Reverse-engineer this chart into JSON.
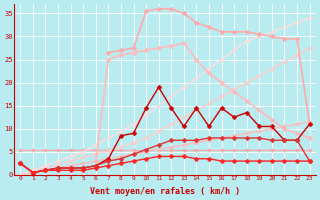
{
  "xlabel": "Vent moyen/en rafales ( km/h )",
  "xlim": [
    -0.5,
    23.5
  ],
  "ylim": [
    0,
    37
  ],
  "yticks": [
    0,
    5,
    10,
    15,
    20,
    25,
    30,
    35
  ],
  "xticks": [
    0,
    1,
    2,
    3,
    4,
    5,
    6,
    7,
    8,
    9,
    10,
    11,
    12,
    13,
    14,
    15,
    16,
    17,
    18,
    19,
    20,
    21,
    22,
    23
  ],
  "bg_color": "#b8ecf0",
  "grid_color": "#ffffff",
  "series": [
    {
      "x": [
        0,
        1,
        2,
        3,
        4,
        5,
        6,
        7,
        8,
        9,
        10,
        11,
        12,
        13,
        14,
        15,
        16,
        17,
        18,
        19,
        20,
        21,
        22,
        23
      ],
      "y": [
        5.5,
        5.5,
        5.5,
        5.5,
        5.5,
        5.5,
        5.5,
        5.5,
        5.5,
        5.5,
        5.5,
        5.5,
        5.5,
        5.5,
        5.5,
        5.5,
        5.5,
        5.5,
        5.5,
        5.5,
        5.5,
        5.5,
        5.5,
        5.5
      ],
      "color": "#ffaaaa",
      "lw": 1.0,
      "marker": "D",
      "ms": 2.0
    },
    {
      "x": [
        0,
        1,
        2,
        3,
        4,
        5,
        6,
        7,
        8,
        9,
        10,
        11,
        12,
        13,
        14,
        15,
        16,
        17,
        18,
        19,
        20,
        21,
        22,
        23
      ],
      "y": [
        0,
        0.5,
        1.0,
        1.5,
        2.0,
        2.5,
        3.0,
        3.5,
        4.0,
        4.5,
        5.0,
        5.5,
        6.0,
        6.5,
        7.0,
        7.5,
        8.0,
        8.5,
        9.0,
        9.5,
        10.0,
        10.5,
        11.0,
        11.5
      ],
      "color": "#ffbbbb",
      "lw": 1.0,
      "marker": "D",
      "ms": 2.0
    },
    {
      "x": [
        0,
        1,
        2,
        3,
        4,
        5,
        6,
        7,
        8,
        9,
        10,
        11,
        12,
        13,
        14,
        15,
        16,
        17,
        18,
        19,
        20,
        21,
        22,
        23
      ],
      "y": [
        0,
        0.8,
        1.5,
        2.2,
        3.0,
        3.8,
        4.5,
        5.2,
        6.0,
        7.0,
        8.0,
        9.5,
        11.0,
        12.5,
        14.0,
        15.5,
        17.0,
        18.5,
        20.0,
        21.5,
        23.0,
        24.5,
        26.0,
        27.5
      ],
      "color": "#ffcccc",
      "lw": 1.0,
      "marker": "D",
      "ms": 2.0
    },
    {
      "x": [
        0,
        1,
        2,
        3,
        4,
        5,
        6,
        7,
        8,
        9,
        10,
        11,
        12,
        13,
        14,
        15,
        16,
        17,
        18,
        19,
        20,
        21,
        22,
        23
      ],
      "y": [
        0,
        1.0,
        2.0,
        3.0,
        4.0,
        5.0,
        6.5,
        8.0,
        9.5,
        11.0,
        13.0,
        15.0,
        17.0,
        19.0,
        21.0,
        23.0,
        25.0,
        27.0,
        29.0,
        30.0,
        31.0,
        32.0,
        33.0,
        34.0
      ],
      "color": "#ffdddd",
      "lw": 1.0,
      "marker": "D",
      "ms": 2.0
    },
    {
      "x": [
        7,
        8,
        9,
        10,
        11,
        12,
        13,
        14,
        15,
        16,
        17,
        18,
        19,
        20,
        21,
        22,
        23
      ],
      "y": [
        26.5,
        27.0,
        27.5,
        35.5,
        36.0,
        36.0,
        35.0,
        33.0,
        32.0,
        31.0,
        31.0,
        31.0,
        30.5,
        30.0,
        29.5,
        29.5,
        11.0
      ],
      "color": "#ffaaaa",
      "lw": 1.2,
      "marker": "D",
      "ms": 2.5
    },
    {
      "x": [
        6,
        7,
        8,
        9,
        10,
        11,
        12,
        13,
        14,
        15,
        16,
        17,
        18,
        19,
        20,
        21,
        22,
        23
      ],
      "y": [
        3.0,
        25.0,
        26.0,
        26.5,
        27.0,
        27.5,
        28.0,
        28.5,
        25.0,
        22.0,
        20.0,
        18.0,
        16.0,
        14.0,
        12.0,
        10.0,
        9.0,
        8.0
      ],
      "color": "#ffbbbb",
      "lw": 1.2,
      "marker": "D",
      "ms": 2.5
    },
    {
      "x": [
        0,
        1,
        2,
        3,
        4,
        5,
        6,
        7,
        8,
        9,
        10,
        11,
        12,
        13,
        14,
        15,
        16,
        17,
        18,
        19,
        20,
        21,
        22,
        23
      ],
      "y": [
        2.5,
        0.5,
        1.0,
        1.5,
        1.5,
        1.5,
        2.0,
        3.5,
        8.5,
        9.0,
        14.5,
        19.0,
        14.5,
        10.5,
        14.5,
        10.5,
        14.5,
        12.5,
        13.5,
        10.5,
        10.5,
        7.5,
        7.5,
        11.0
      ],
      "color": "#cc0000",
      "lw": 1.0,
      "marker": "D",
      "ms": 2.5
    },
    {
      "x": [
        0,
        1,
        2,
        3,
        4,
        5,
        6,
        7,
        8,
        9,
        10,
        11,
        12,
        13,
        14,
        15,
        16,
        17,
        18,
        19,
        20,
        21,
        22,
        23
      ],
      "y": [
        2.5,
        0.5,
        1.0,
        1.5,
        1.5,
        1.5,
        2.0,
        3.0,
        3.5,
        4.5,
        5.5,
        6.5,
        7.5,
        7.5,
        7.5,
        8.0,
        8.0,
        8.0,
        8.0,
        8.0,
        7.5,
        7.5,
        7.5,
        3.0
      ],
      "color": "#dd3333",
      "lw": 1.0,
      "marker": "D",
      "ms": 2.5
    },
    {
      "x": [
        0,
        1,
        2,
        3,
        4,
        5,
        6,
        7,
        8,
        9,
        10,
        11,
        12,
        13,
        14,
        15,
        16,
        17,
        18,
        19,
        20,
        21,
        22,
        23
      ],
      "y": [
        2.5,
        0.5,
        1.0,
        1.0,
        1.0,
        1.0,
        1.5,
        2.0,
        2.5,
        3.0,
        3.5,
        4.0,
        4.0,
        4.0,
        3.5,
        3.5,
        3.0,
        3.0,
        3.0,
        3.0,
        3.0,
        3.0,
        3.0,
        3.0
      ],
      "color": "#ff2222",
      "lw": 1.0,
      "marker": "D",
      "ms": 2.5
    }
  ]
}
